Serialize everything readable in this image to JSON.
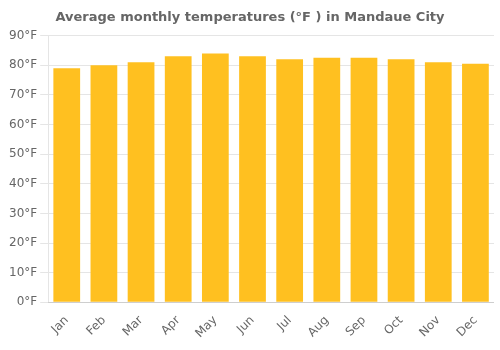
{
  "chart_data": {
    "type": "bar",
    "title": "Average monthly temperatures (°F ) in Mandaue City",
    "categories": [
      "Jan",
      "Feb",
      "Mar",
      "Apr",
      "May",
      "Jun",
      "Jul",
      "Aug",
      "Sep",
      "Oct",
      "Nov",
      "Dec"
    ],
    "values": [
      79,
      80,
      81,
      83,
      84,
      83,
      82,
      82.5,
      82.5,
      82,
      81,
      80.5
    ],
    "color": "#FFC020",
    "ylim": [
      0,
      90
    ],
    "yticks": [
      {
        "value": 0,
        "label": "0°F"
      },
      {
        "value": 10,
        "label": "10°F"
      },
      {
        "value": 20,
        "label": "20°F"
      },
      {
        "value": 30,
        "label": "30°F"
      },
      {
        "value": 40,
        "label": "40°F"
      },
      {
        "value": 50,
        "label": "50°F"
      },
      {
        "value": 60,
        "label": "60°F"
      },
      {
        "value": 70,
        "label": "70°F"
      },
      {
        "value": 80,
        "label": "80°F"
      },
      {
        "value": 90,
        "label": "90°F"
      }
    ],
    "grid": true
  }
}
